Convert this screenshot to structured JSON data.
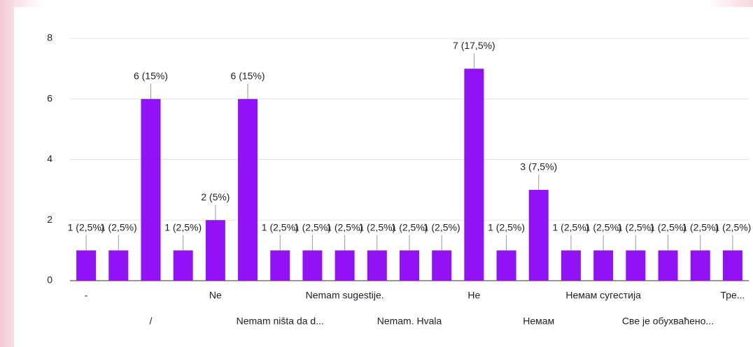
{
  "chart_data": {
    "type": "bar",
    "categories": [
      "-",
      null,
      "/",
      null,
      "Ne",
      null,
      "Nemam ništa da d...",
      null,
      "Nemam sugestije.",
      null,
      "Nemam. Hvala",
      null,
      "Не",
      null,
      "Немам",
      null,
      "Немам сугестија",
      null,
      "Све је обухваћено...",
      null,
      "Тре..."
    ],
    "values": [
      1,
      1,
      6,
      1,
      2,
      6,
      1,
      1,
      1,
      1,
      1,
      1,
      7,
      1,
      3,
      1,
      1,
      1,
      1,
      1,
      1
    ],
    "value_labels": [
      "1 (2,5%)",
      "1 (2,5%)",
      "6 (15%)",
      "1 (2,5%)",
      "2 (5%)",
      "6 (15%)",
      "1 (2,5%)",
      "1 (2,5%)",
      "1 (2,5%)",
      "1 (2,5%)",
      "1 (2,5%)",
      "1 (2,5%)",
      "7 (17,5%)",
      "1 (2,5%)",
      "3 (7,5%)",
      "1 (2,5%)",
      "1 (2,5%)",
      "1 (2,5%)",
      "1 (2,5%)",
      "1 (2,5%)",
      "1 (2,5%)"
    ],
    "color": "#9112f5",
    "ylim": [
      0,
      8
    ],
    "yticks": [
      0,
      2,
      4,
      6,
      8
    ],
    "grid": true
  }
}
